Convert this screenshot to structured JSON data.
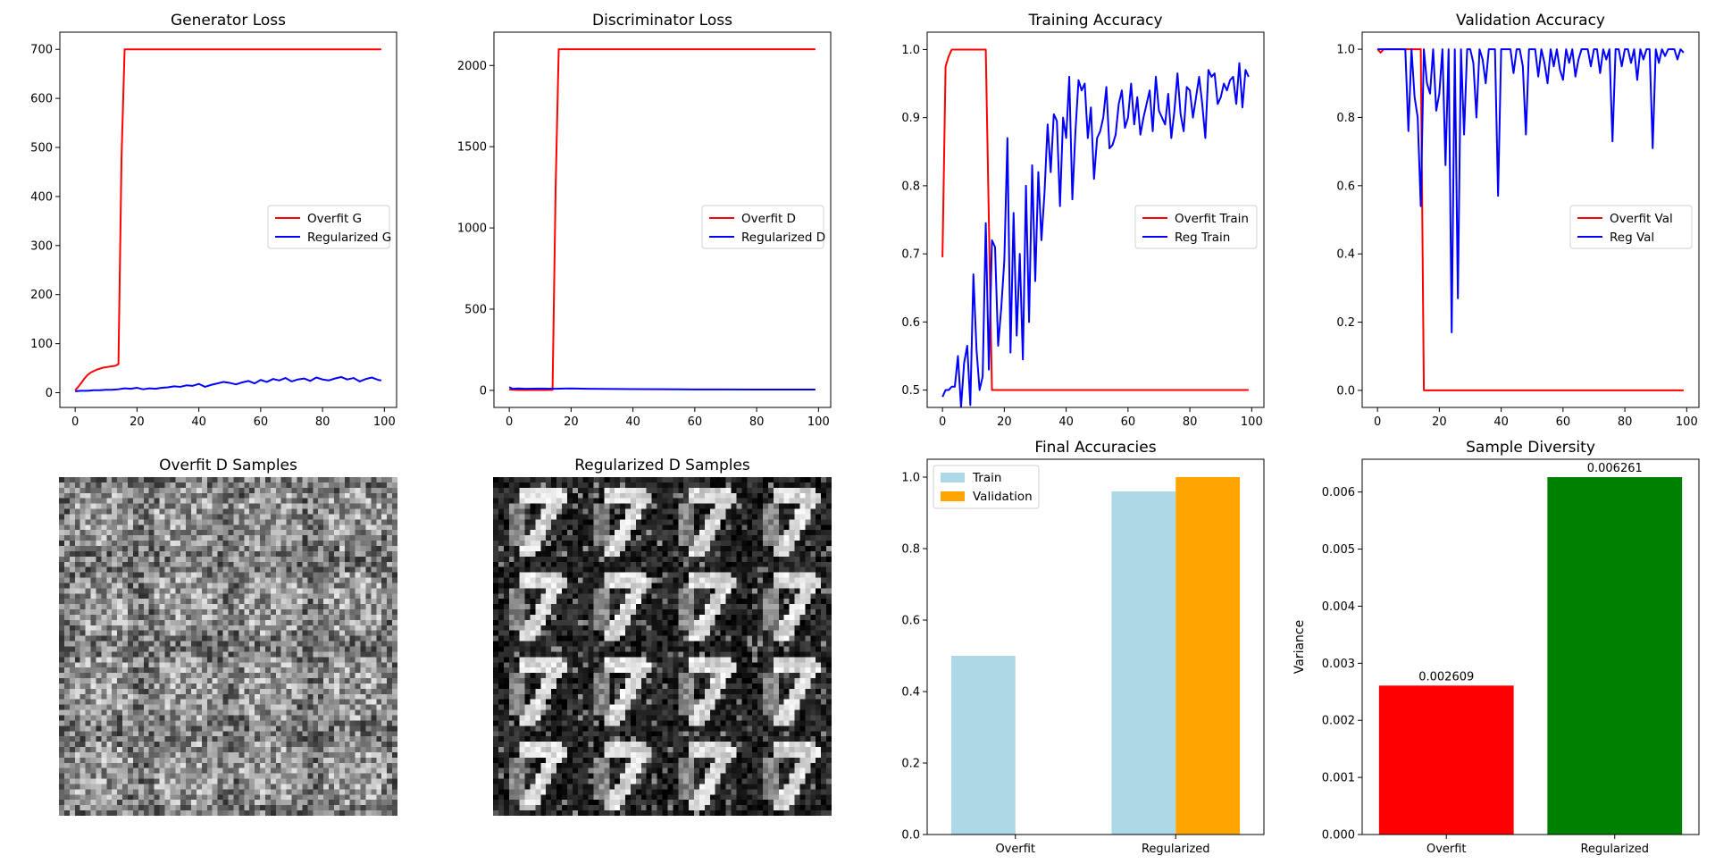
{
  "colors": {
    "overfit_line": "#ff0000",
    "regularized_line": "#0000ff",
    "train_bar": "#add8e6",
    "validation_bar": "#ffa500",
    "overfit_bar": "#ff0000",
    "regularized_bar": "#008000"
  },
  "chart_data": [
    {
      "id": "generator_loss",
      "type": "line",
      "title": "Generator Loss",
      "xlabel": "",
      "ylabel": "",
      "xlim": [
        -4.95,
        103.95
      ],
      "ylim": [
        -30,
        735
      ],
      "x_ticks": [
        0,
        20,
        40,
        60,
        80,
        100
      ],
      "y_ticks": [
        0,
        100,
        200,
        300,
        400,
        500,
        600,
        700
      ],
      "legend": "center-right",
      "grid": false,
      "series": [
        {
          "name": "Overfit G",
          "color": "overfit_line",
          "x": [
            0,
            1,
            2,
            3,
            4,
            5,
            6,
            7,
            8,
            9,
            10,
            11,
            12,
            13,
            14,
            15,
            16,
            17,
            20,
            40,
            60,
            80,
            99
          ],
          "y": [
            5,
            12,
            20,
            29,
            36,
            41,
            44,
            47,
            49,
            51,
            52,
            53,
            54,
            55,
            58,
            480,
            700,
            700,
            700,
            700,
            700,
            700,
            700
          ]
        },
        {
          "name": "Regularized G",
          "color": "regularized_line",
          "x": [
            0,
            2,
            4,
            6,
            8,
            10,
            12,
            14,
            16,
            18,
            20,
            22,
            24,
            26,
            28,
            30,
            32,
            34,
            36,
            38,
            40,
            42,
            44,
            46,
            48,
            50,
            52,
            54,
            56,
            58,
            60,
            62,
            64,
            66,
            68,
            70,
            72,
            74,
            76,
            78,
            80,
            82,
            84,
            86,
            88,
            90,
            92,
            94,
            96,
            98,
            99
          ],
          "y": [
            3,
            4,
            4,
            5,
            5,
            6,
            6,
            7,
            9,
            8,
            10,
            7,
            9,
            8,
            10,
            11,
            13,
            12,
            15,
            14,
            18,
            12,
            16,
            19,
            22,
            20,
            17,
            21,
            24,
            19,
            26,
            22,
            28,
            25,
            30,
            23,
            27,
            29,
            24,
            31,
            27,
            25,
            29,
            32,
            27,
            30,
            23,
            28,
            31,
            26,
            25
          ]
        }
      ]
    },
    {
      "id": "discriminator_loss",
      "type": "line",
      "title": "Discriminator Loss",
      "xlabel": "",
      "ylabel": "",
      "xlim": [
        -4.95,
        103.95
      ],
      "ylim": [
        -105,
        2205
      ],
      "x_ticks": [
        0,
        20,
        40,
        60,
        80,
        100
      ],
      "y_ticks": [
        0,
        500,
        1000,
        1500,
        2000
      ],
      "legend": "center-right",
      "grid": false,
      "series": [
        {
          "name": "Overfit D",
          "color": "overfit_line",
          "x": [
            0,
            2,
            4,
            6,
            8,
            10,
            12,
            14,
            15,
            16,
            17,
            20,
            40,
            60,
            80,
            99
          ],
          "y": [
            5,
            3,
            2,
            2,
            2,
            2,
            2,
            3,
            1250,
            2100,
            2100,
            2100,
            2100,
            2100,
            2100,
            2100
          ]
        },
        {
          "name": "Regularized D",
          "color": "regularized_line",
          "x": [
            0,
            1,
            3,
            5,
            10,
            15,
            20,
            25,
            30,
            40,
            50,
            60,
            70,
            80,
            90,
            99
          ],
          "y": [
            20,
            10,
            12,
            10,
            11,
            10,
            12,
            10,
            9,
            8,
            7,
            6,
            6,
            5,
            5,
            5
          ]
        }
      ]
    },
    {
      "id": "training_accuracy",
      "type": "line",
      "title": "Training Accuracy",
      "xlabel": "",
      "ylabel": "",
      "xlim": [
        -4.95,
        103.95
      ],
      "ylim": [
        0.4745,
        1.0255
      ],
      "x_ticks": [
        0,
        20,
        40,
        60,
        80,
        100
      ],
      "y_ticks": [
        0.5,
        0.6,
        0.7,
        0.8,
        0.9,
        1.0
      ],
      "legend": "center-right",
      "grid": false,
      "series": [
        {
          "name": "Overfit Train",
          "color": "overfit_line",
          "x": [
            0,
            1,
            2,
            3,
            4,
            5,
            6,
            7,
            8,
            9,
            10,
            11,
            12,
            13,
            14,
            15,
            16,
            20,
            40,
            60,
            80,
            99
          ],
          "y": [
            0.695,
            0.975,
            0.99,
            1.0,
            1.0,
            1.0,
            1.0,
            1.0,
            1.0,
            1.0,
            1.0,
            1.0,
            1.0,
            1.0,
            1.0,
            0.75,
            0.5,
            0.5,
            0.5,
            0.5,
            0.5,
            0.5
          ]
        },
        {
          "name": "Reg Train",
          "color": "regularized_line",
          "x": [
            0,
            1,
            2,
            3,
            4,
            5,
            6,
            7,
            8,
            9,
            10,
            11,
            12,
            13,
            14,
            15,
            16,
            17,
            18,
            19,
            20,
            21,
            22,
            23,
            24,
            25,
            26,
            27,
            28,
            29,
            30,
            31,
            32,
            33,
            34,
            35,
            36,
            37,
            38,
            39,
            40,
            41,
            42,
            43,
            44,
            45,
            46,
            47,
            48,
            49,
            50,
            51,
            52,
            53,
            54,
            55,
            56,
            57,
            58,
            59,
            60,
            61,
            62,
            63,
            64,
            65,
            66,
            67,
            68,
            69,
            70,
            71,
            72,
            73,
            74,
            75,
            76,
            77,
            78,
            79,
            80,
            81,
            82,
            83,
            84,
            85,
            86,
            87,
            88,
            89,
            90,
            91,
            92,
            93,
            94,
            95,
            96,
            97,
            98,
            99
          ],
          "y": [
            0.49,
            0.5,
            0.5,
            0.505,
            0.505,
            0.55,
            0.475,
            0.54,
            0.565,
            0.478,
            0.67,
            0.56,
            0.5,
            0.52,
            0.745,
            0.53,
            0.72,
            0.71,
            0.565,
            0.62,
            0.69,
            0.87,
            0.555,
            0.76,
            0.58,
            0.7,
            0.545,
            0.8,
            0.6,
            0.83,
            0.66,
            0.82,
            0.72,
            0.79,
            0.89,
            0.82,
            0.905,
            0.895,
            0.77,
            0.9,
            0.87,
            0.96,
            0.78,
            0.88,
            0.955,
            0.94,
            0.95,
            0.87,
            0.915,
            0.81,
            0.87,
            0.88,
            0.9,
            0.945,
            0.855,
            0.86,
            0.875,
            0.92,
            0.94,
            0.885,
            0.9,
            0.95,
            0.89,
            0.93,
            0.875,
            0.9,
            0.92,
            0.94,
            0.88,
            0.96,
            0.91,
            0.9,
            0.89,
            0.935,
            0.87,
            0.91,
            0.965,
            0.905,
            0.88,
            0.945,
            0.94,
            0.9,
            0.93,
            0.96,
            0.92,
            0.87,
            0.97,
            0.96,
            0.965,
            0.92,
            0.93,
            0.95,
            0.94,
            0.955,
            0.96,
            0.92,
            0.98,
            0.915,
            0.97,
            0.96
          ]
        }
      ]
    },
    {
      "id": "validation_accuracy",
      "type": "line",
      "title": "Validation Accuracy",
      "xlabel": "",
      "ylabel": "",
      "xlim": [
        -4.95,
        103.95
      ],
      "ylim": [
        -0.05,
        1.05
      ],
      "x_ticks": [
        0,
        20,
        40,
        60,
        80,
        100
      ],
      "y_ticks": [
        0.0,
        0.2,
        0.4,
        0.6,
        0.8,
        1.0
      ],
      "legend": "center-right",
      "grid": false,
      "series": [
        {
          "name": "Overfit Val",
          "color": "overfit_line",
          "x": [
            0,
            1,
            2,
            3,
            4,
            5,
            6,
            7,
            8,
            9,
            10,
            11,
            12,
            13,
            14,
            15,
            16,
            20,
            40,
            60,
            80,
            99
          ],
          "y": [
            1.0,
            0.99,
            1.0,
            1.0,
            1.0,
            1.0,
            1.0,
            1.0,
            1.0,
            1.0,
            1.0,
            1.0,
            1.0,
            1.0,
            1.0,
            0.0,
            0.0,
            0.0,
            0.0,
            0.0,
            0.0,
            0.0
          ]
        },
        {
          "name": "Reg Val",
          "color": "regularized_line",
          "x": [
            0,
            1,
            2,
            3,
            4,
            5,
            6,
            7,
            8,
            9,
            10,
            11,
            12,
            13,
            14,
            15,
            16,
            17,
            18,
            19,
            20,
            21,
            22,
            23,
            24,
            25,
            26,
            27,
            28,
            29,
            30,
            31,
            32,
            33,
            34,
            35,
            36,
            37,
            38,
            39,
            40,
            41,
            42,
            43,
            44,
            45,
            46,
            47,
            48,
            49,
            50,
            51,
            52,
            53,
            54,
            55,
            56,
            57,
            58,
            59,
            60,
            61,
            62,
            63,
            64,
            65,
            66,
            67,
            68,
            69,
            70,
            71,
            72,
            73,
            74,
            75,
            76,
            77,
            78,
            79,
            80,
            81,
            82,
            83,
            84,
            85,
            86,
            87,
            88,
            89,
            90,
            91,
            92,
            93,
            94,
            95,
            96,
            97,
            98,
            99
          ],
          "y": [
            1.0,
            1.0,
            1.0,
            1.0,
            1.0,
            1.0,
            1.0,
            1.0,
            1.0,
            1.0,
            0.76,
            1.0,
            0.86,
            0.8,
            0.54,
            1.0,
            0.9,
            0.87,
            1.0,
            0.82,
            0.87,
            1.0,
            0.66,
            1.0,
            0.17,
            1.0,
            0.27,
            1.0,
            0.75,
            1.0,
            1.0,
            0.96,
            0.8,
            1.0,
            0.97,
            0.9,
            1.0,
            1.0,
            1.0,
            0.57,
            1.0,
            1.0,
            1.0,
            1.0,
            0.93,
            1.0,
            1.0,
            0.95,
            0.75,
            1.0,
            1.0,
            1.0,
            0.92,
            1.0,
            0.96,
            0.9,
            1.0,
            0.95,
            1.0,
            0.94,
            0.91,
            1.0,
            0.96,
            1.0,
            0.92,
            0.97,
            1.0,
            1.0,
            1.0,
            0.95,
            1.0,
            1.0,
            0.93,
            1.0,
            0.97,
            1.0,
            0.73,
            1.0,
            1.0,
            0.95,
            1.0,
            1.0,
            0.96,
            1.0,
            0.91,
            1.0,
            0.97,
            1.0,
            1.0,
            0.71,
            1.0,
            0.96,
            1.0,
            0.98,
            1.0,
            1.0,
            1.0,
            0.97,
            1.0,
            0.99
          ]
        }
      ]
    },
    {
      "id": "overfit_samples",
      "type": "heatmap",
      "title": "Overfit D Samples",
      "grid_layout": [
        4,
        4
      ],
      "pixels_per_cell": 16,
      "colormap": "gray",
      "pattern": "noisy-gray"
    },
    {
      "id": "regularized_samples",
      "type": "heatmap",
      "title": "Regularized D Samples",
      "grid_layout": [
        4,
        4
      ],
      "pixels_per_cell": 16,
      "colormap": "gray",
      "pattern": "digit-seven"
    },
    {
      "id": "final_accuracies",
      "type": "bar",
      "title": "Final Accuracies",
      "xlabel": "",
      "ylabel": "",
      "categories": [
        "Overfit",
        "Regularized"
      ],
      "ylim": [
        0,
        1.05
      ],
      "y_ticks": [
        0.0,
        0.2,
        0.4,
        0.6,
        0.8,
        1.0
      ],
      "legend": "top-left",
      "grid": false,
      "series": [
        {
          "name": "Train",
          "color": "train_bar",
          "values": [
            0.5,
            0.96
          ]
        },
        {
          "name": "Validation",
          "color": "validation_bar",
          "values": [
            0.0,
            1.0
          ]
        }
      ]
    },
    {
      "id": "sample_diversity",
      "type": "bar",
      "title": "Sample Diversity",
      "xlabel": "",
      "ylabel": "Variance",
      "categories": [
        "Overfit",
        "Regularized"
      ],
      "values": [
        0.002609,
        0.006261
      ],
      "value_labels": [
        "0.002609",
        "0.006261"
      ],
      "bar_colors": [
        "overfit_bar",
        "regularized_bar"
      ],
      "ylim": [
        0,
        0.006574
      ],
      "y_ticks": [
        0.0,
        0.001,
        0.002,
        0.003,
        0.004,
        0.005,
        0.006
      ],
      "grid": false
    }
  ]
}
